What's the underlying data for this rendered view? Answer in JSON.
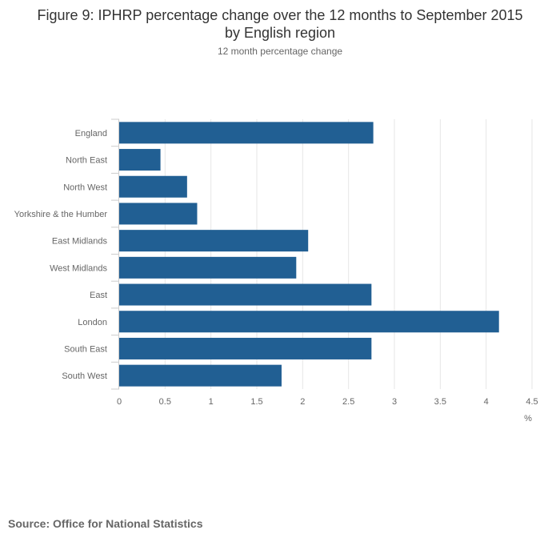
{
  "chart_data": {
    "type": "bar",
    "orientation": "horizontal",
    "title_lines": [
      "Figure 9: IPHRP percentage change over the 12 months to September 2015",
      "by English region"
    ],
    "subtitle": "12 month percentage change",
    "categories": [
      "England",
      "North East",
      "North West",
      "Yorkshire & the Humber",
      "East Midlands",
      "West Midlands",
      "East",
      "London",
      "South East",
      "South West"
    ],
    "values": [
      2.77,
      0.45,
      0.74,
      0.85,
      2.06,
      1.93,
      2.75,
      4.14,
      2.75,
      1.77
    ],
    "xlim": [
      0,
      4.5
    ],
    "xticks": [
      "0",
      "0.5",
      "1",
      "1.5",
      "2",
      "2.5",
      "3",
      "3.5",
      "4",
      "4.5"
    ],
    "xlabel": "%",
    "bar_color": "#215f93",
    "grid": true,
    "legend": "none"
  },
  "source": "Source: Office for National Statistics"
}
